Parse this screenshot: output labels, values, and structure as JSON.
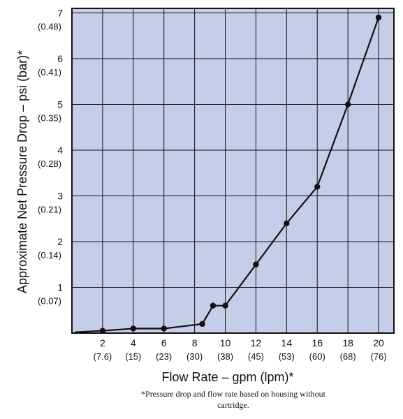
{
  "chart_data": {
    "type": "line",
    "xlabel": "Flow Rate – gpm (lpm)*",
    "ylabel": "Approximate Net Pressure Drop – psi (bar)*",
    "xlim": [
      0,
      21
    ],
    "ylim": [
      0,
      7.1
    ],
    "grid": true,
    "background_color": "#c5cde9",
    "line_color": "#111111",
    "x_ticks": [
      {
        "value": 2,
        "label": "2",
        "sublabel": "(7.6)"
      },
      {
        "value": 4,
        "label": "4",
        "sublabel": "(15)"
      },
      {
        "value": 6,
        "label": "6",
        "sublabel": "(23)"
      },
      {
        "value": 8,
        "label": "8",
        "sublabel": "(30)"
      },
      {
        "value": 10,
        "label": "10",
        "sublabel": "(38)"
      },
      {
        "value": 12,
        "label": "12",
        "sublabel": "(45)"
      },
      {
        "value": 14,
        "label": "14",
        "sublabel": "(53)"
      },
      {
        "value": 16,
        "label": "16",
        "sublabel": "(60)"
      },
      {
        "value": 18,
        "label": "18",
        "sublabel": "(68)"
      },
      {
        "value": 20,
        "label": "20",
        "sublabel": "(76)"
      }
    ],
    "y_ticks": [
      {
        "value": 1,
        "label": "1",
        "sublabel": "(0.07)"
      },
      {
        "value": 2,
        "label": "2",
        "sublabel": "(0.14)"
      },
      {
        "value": 3,
        "label": "3",
        "sublabel": "(0.21)"
      },
      {
        "value": 4,
        "label": "4",
        "sublabel": "(0.28)"
      },
      {
        "value": 5,
        "label": "5",
        "sublabel": "(0.35)"
      },
      {
        "value": 6,
        "label": "6",
        "sublabel": "(0.41)"
      },
      {
        "value": 7,
        "label": "7",
        "sublabel": "(0.48)"
      }
    ],
    "series": [
      {
        "points": [
          {
            "x": 0.2,
            "y": 0.02,
            "marker": false
          },
          {
            "x": 2,
            "y": 0.05,
            "marker": true
          },
          {
            "x": 4,
            "y": 0.1,
            "marker": true
          },
          {
            "x": 6,
            "y": 0.1,
            "marker": true
          },
          {
            "x": 8.5,
            "y": 0.2,
            "marker": true
          },
          {
            "x": 9.2,
            "y": 0.6,
            "marker": true
          },
          {
            "x": 10,
            "y": 0.6,
            "marker": true
          },
          {
            "x": 12,
            "y": 1.5,
            "marker": true
          },
          {
            "x": 14,
            "y": 2.4,
            "marker": true
          },
          {
            "x": 16,
            "y": 3.2,
            "marker": true
          },
          {
            "x": 18,
            "y": 5.0,
            "marker": true
          },
          {
            "x": 20,
            "y": 6.9,
            "marker": true
          }
        ]
      }
    ],
    "footnote_lines": [
      "*Pressure drop and flow rate based on housing without",
      "cartridge."
    ]
  }
}
